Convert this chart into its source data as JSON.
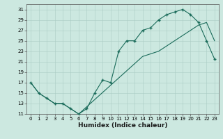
{
  "xlabel": "Humidex (Indice chaleur)",
  "bg_color": "#cce8e0",
  "grid_color": "#aaccC4",
  "line_color": "#1a6b5a",
  "xlim": [
    -0.5,
    23.5
  ],
  "ylim": [
    11,
    32
  ],
  "yticks": [
    11,
    13,
    15,
    17,
    19,
    21,
    23,
    25,
    27,
    29,
    31
  ],
  "xticks": [
    0,
    1,
    2,
    3,
    4,
    5,
    6,
    7,
    8,
    9,
    10,
    11,
    12,
    13,
    14,
    15,
    16,
    17,
    18,
    19,
    20,
    21,
    22,
    23
  ],
  "line1_x": [
    0,
    1,
    2,
    3,
    4,
    5,
    6,
    7,
    8,
    9,
    10,
    11,
    12,
    13,
    14,
    15,
    16,
    17,
    18,
    19,
    20,
    21,
    22,
    23
  ],
  "line1_y": [
    17,
    15,
    14,
    13,
    13,
    12,
    11,
    12,
    15,
    17.5,
    17,
    23,
    25,
    25,
    27,
    27.5,
    29,
    30,
    30.5,
    31,
    30,
    28.5,
    25,
    21.5
  ],
  "line2_x": [
    0,
    1,
    2,
    3,
    4,
    5,
    6,
    14,
    15,
    16,
    17,
    18,
    19,
    20,
    21,
    22,
    23
  ],
  "line2_y": [
    17,
    15,
    14,
    13,
    13,
    12,
    11,
    22,
    22.5,
    23,
    24,
    25,
    26,
    27,
    28,
    28.5,
    25
  ],
  "marker": "+",
  "markersize": 3,
  "markeredgewidth": 1.0,
  "linewidth": 0.8,
  "tick_fontsize": 5.0,
  "label_fontsize": 6.5
}
